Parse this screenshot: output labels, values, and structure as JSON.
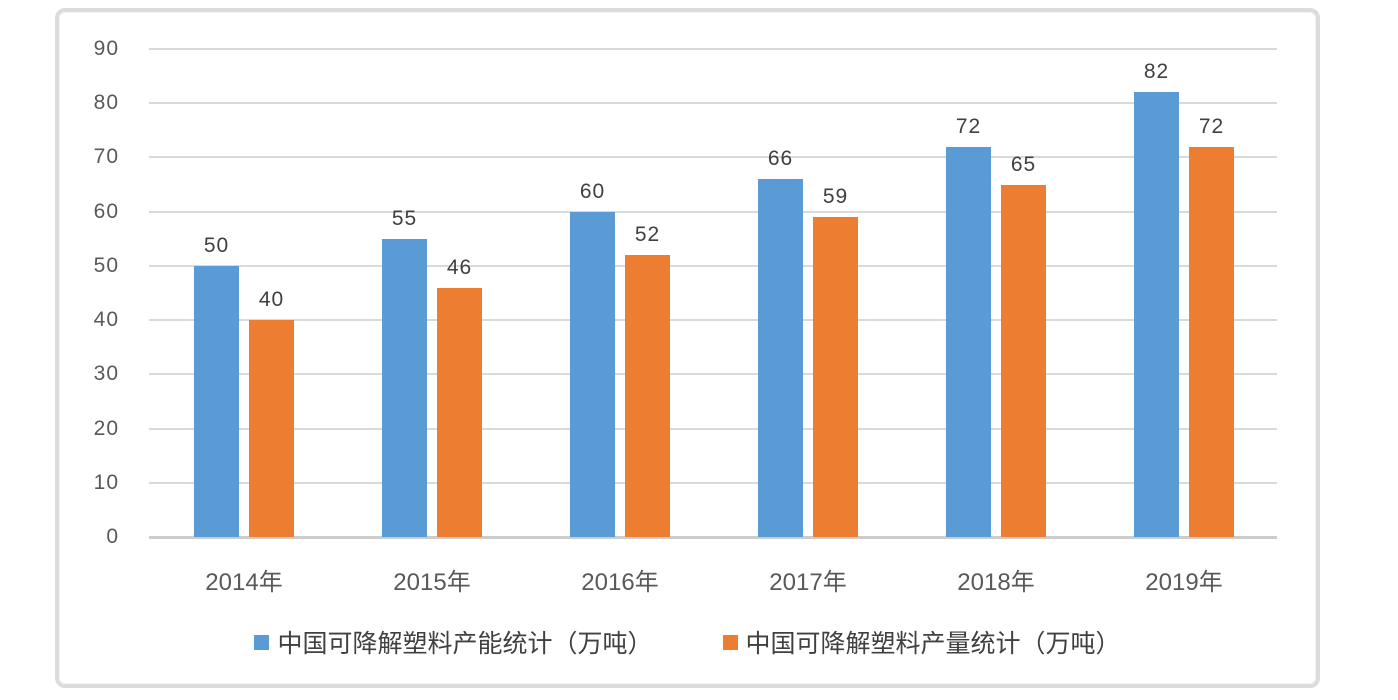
{
  "chart_data": {
    "type": "bar",
    "title": "",
    "xlabel": "",
    "ylabel": "",
    "categories": [
      "2014年",
      "2015年",
      "2016年",
      "2017年",
      "2018年",
      "2019年"
    ],
    "series": [
      {
        "name": "中国可降解塑料产能统计（万吨）",
        "color": "#5b9bd5",
        "values": [
          50,
          55,
          60,
          66,
          72,
          82
        ]
      },
      {
        "name": "中国可降解塑料产量统计（万吨）",
        "color": "#ed7d31",
        "values": [
          40,
          46,
          52,
          59,
          65,
          72
        ]
      }
    ],
    "ylim": [
      0,
      90
    ],
    "yticks": [
      0,
      10,
      20,
      30,
      40,
      50,
      60,
      70,
      80,
      90
    ],
    "grid": true,
    "data_labels": true,
    "legend_position": "bottom"
  },
  "colors": {
    "series_capacity": "#5b9bd5",
    "series_output": "#ed7d31",
    "gridline": "#d9d9d9",
    "axis_line": "#cccccc",
    "tick_text": "#595959",
    "label_text": "#404040",
    "frame_border": "#dcdcdc",
    "background": "#ffffff"
  }
}
